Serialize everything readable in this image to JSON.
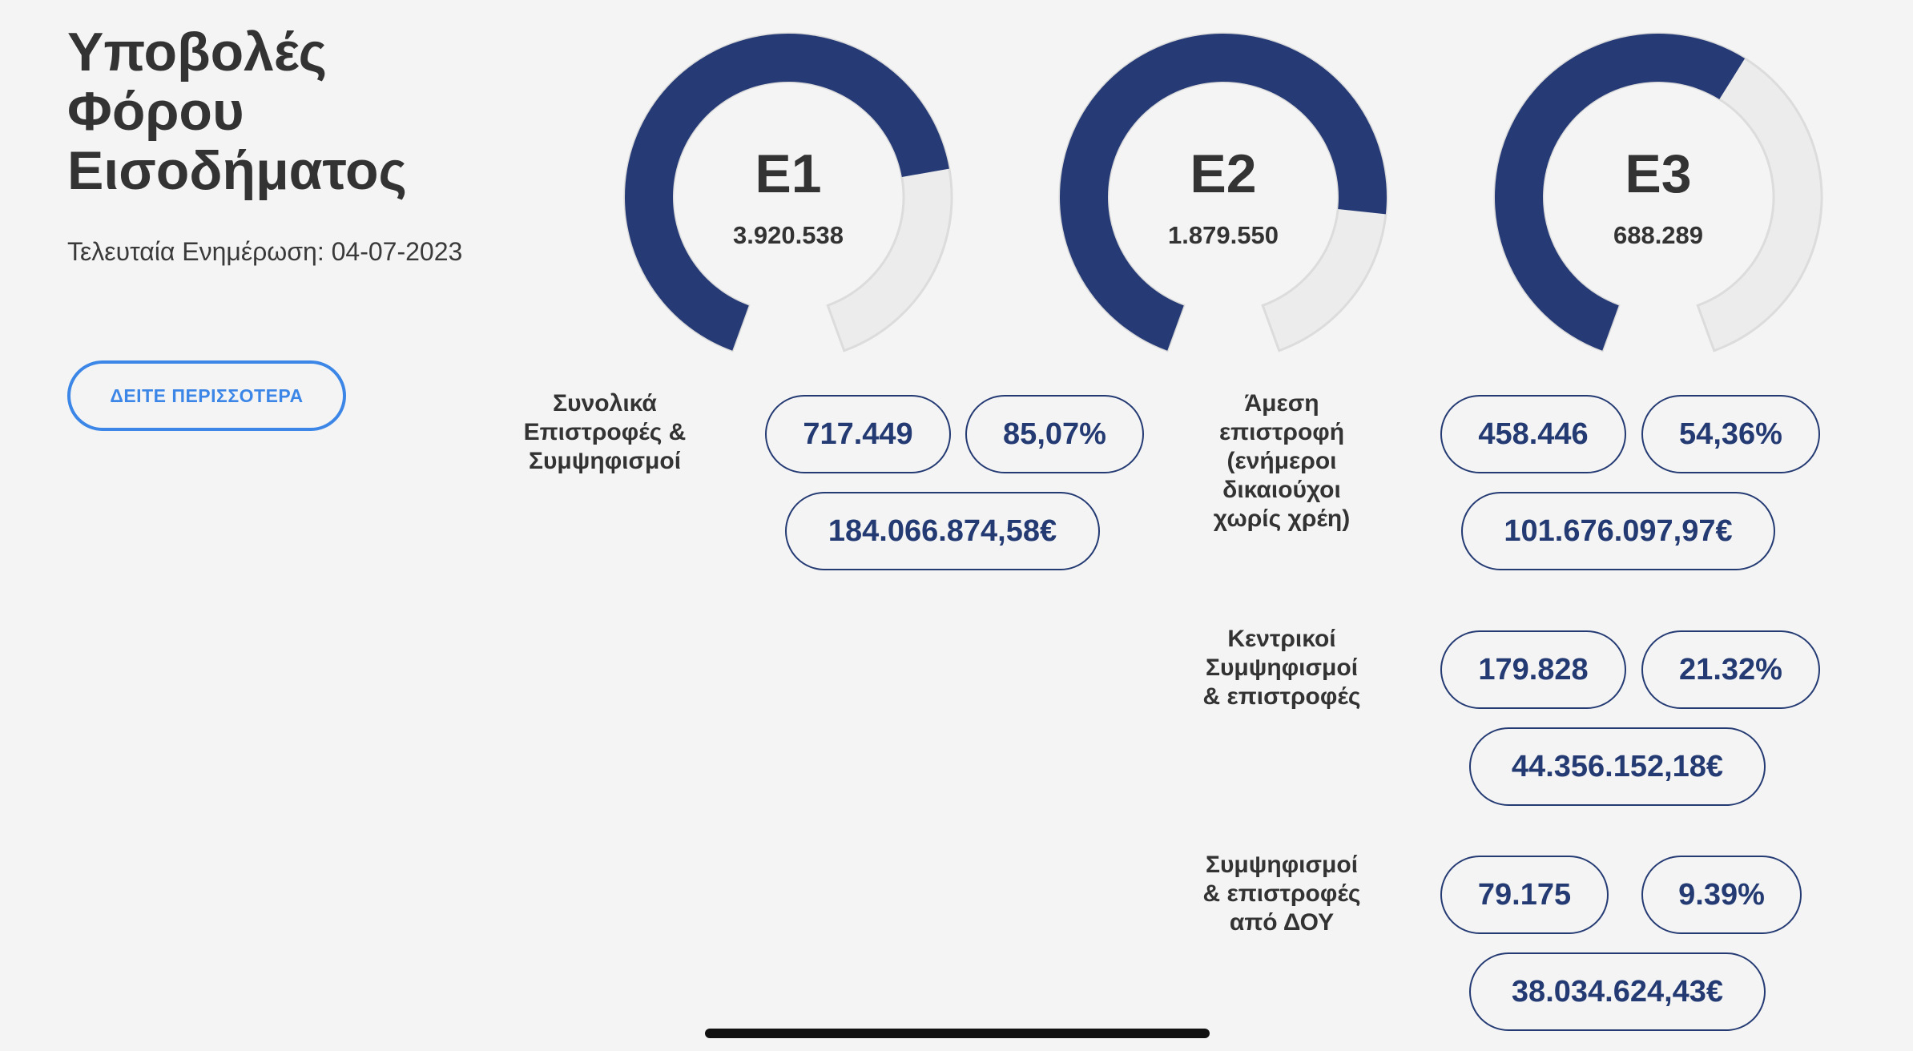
{
  "header": {
    "title_lines": [
      "Υποβολές",
      "Φόρου",
      "Εισοδήματος"
    ],
    "last_update": "Τελευταία Ενημέρωση: 04-07-2023",
    "see_more_label": "ΔΕΙΤΕ ΠΕΡΙΣΣΟΤΕΡΑ"
  },
  "colors": {
    "accent": "#263b76",
    "track": "#ececec",
    "button": "#3b86e6"
  },
  "chart_data": {
    "type": "pie",
    "charts": [
      {
        "label": "E1",
        "value": "3.920.538",
        "fill_fraction": 0.75
      },
      {
        "label": "E2",
        "value": "1.879.550",
        "fill_fraction": 0.8
      },
      {
        "label": "E3",
        "value": "688.289",
        "fill_fraction": 0.6
      }
    ]
  },
  "totals": {
    "label_lines": [
      "Συνολικά",
      "Επιστροφές &",
      "Συμψηφισμοί"
    ],
    "count": "717.449",
    "percent": "85,07%",
    "amount": "184.066.874,58€"
  },
  "breakdown": [
    {
      "label_lines": [
        "Άμεση",
        "επιστροφή",
        "(ενήμεροι",
        "δικαιούχοι",
        "χωρίς χρέη)"
      ],
      "count": "458.446",
      "percent": "54,36%",
      "amount": "101.676.097,97€"
    },
    {
      "label_lines": [
        "Κεντρικοί",
        "Συμψηφισμοί",
        "& επιστροφές"
      ],
      "count": "179.828",
      "percent": "21.32%",
      "amount": "44.356.152,18€"
    },
    {
      "label_lines": [
        "Συμψηφισμοί",
        "& επιστροφές",
        "από ΔΟΥ"
      ],
      "count": "79.175",
      "percent": "9.39%",
      "amount": "38.034.624,43€"
    }
  ]
}
